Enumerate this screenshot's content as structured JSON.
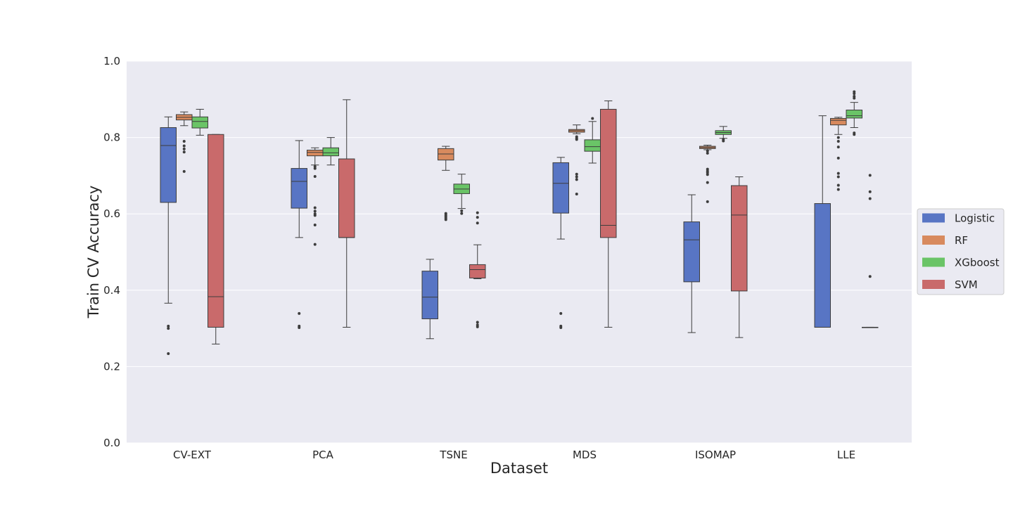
{
  "chart_data": {
    "type": "box",
    "xlabel": "Dataset",
    "ylabel": "Train CV Accuracy",
    "ylim": [
      0.0,
      1.0
    ],
    "yticks": [
      0.0,
      0.2,
      0.4,
      0.6,
      0.8,
      1.0
    ],
    "ytick_labels": [
      "0.0",
      "0.2",
      "0.4",
      "0.6",
      "0.8",
      "1.0"
    ],
    "grid": true,
    "legend_position": "right",
    "categories": [
      "CV-EXT",
      "PCA",
      "TSNE",
      "MDS",
      "ISOMAP",
      "LLE"
    ],
    "series": [
      {
        "name": "Logistic",
        "color": "#5875c4",
        "boxes": [
          {
            "whislo": 0.366,
            "q1": 0.63,
            "med": 0.779,
            "q3": 0.826,
            "whishi": 0.854,
            "fliers": [
              0.3,
              0.306,
              0.234
            ]
          },
          {
            "whislo": 0.538,
            "q1": 0.615,
            "med": 0.685,
            "q3": 0.719,
            "whishi": 0.792,
            "fliers": [
              0.339,
              0.306,
              0.302
            ]
          },
          {
            "whislo": 0.273,
            "q1": 0.325,
            "med": 0.382,
            "q3": 0.45,
            "whishi": 0.481,
            "fliers": []
          },
          {
            "whislo": 0.534,
            "q1": 0.602,
            "med": 0.68,
            "q3": 0.734,
            "whishi": 0.748,
            "fliers": [
              0.339,
              0.306,
              0.302
            ]
          },
          {
            "whislo": 0.289,
            "q1": 0.422,
            "med": 0.532,
            "q3": 0.579,
            "whishi": 0.65,
            "fliers": []
          },
          {
            "whislo": 0.303,
            "q1": 0.303,
            "med": 0.303,
            "q3": 0.627,
            "whishi": 0.857,
            "fliers": []
          }
        ]
      },
      {
        "name": "RF",
        "color": "#d88a5e",
        "boxes": [
          {
            "whislo": 0.831,
            "q1": 0.846,
            "med": 0.853,
            "q3": 0.86,
            "whishi": 0.867,
            "fliers": [
              0.79,
              0.778,
              0.77,
              0.762,
              0.711
            ]
          },
          {
            "whislo": 0.728,
            "q1": 0.752,
            "med": 0.761,
            "q3": 0.767,
            "whishi": 0.773,
            "fliers": [
              0.724,
              0.719,
              0.698,
              0.616,
              0.607,
              0.6,
              0.596,
              0.571,
              0.52
            ]
          },
          {
            "whislo": 0.714,
            "q1": 0.741,
            "med": 0.757,
            "q3": 0.771,
            "whishi": 0.777,
            "fliers": [
              0.601,
              0.597,
              0.593,
              0.589,
              0.585
            ]
          },
          {
            "whislo": 0.81,
            "q1": 0.814,
            "med": 0.818,
            "q3": 0.821,
            "whishi": 0.833,
            "fliers": [
              0.802,
              0.798,
              0.795,
              0.704,
              0.697,
              0.69,
              0.652
            ]
          },
          {
            "whislo": 0.768,
            "q1": 0.771,
            "med": 0.774,
            "q3": 0.777,
            "whishi": 0.78,
            "fliers": [
              0.765,
              0.759,
              0.717,
              0.712,
              0.708,
              0.703,
              0.682,
              0.632
            ]
          },
          {
            "whislo": 0.808,
            "q1": 0.833,
            "med": 0.845,
            "q3": 0.85,
            "whishi": 0.853,
            "fliers": [
              0.8,
              0.79,
              0.775,
              0.746,
              0.706,
              0.697,
              0.675,
              0.664
            ]
          }
        ]
      },
      {
        "name": "XGboost",
        "color": "#6ac467",
        "boxes": [
          {
            "whislo": 0.806,
            "q1": 0.825,
            "med": 0.842,
            "q3": 0.854,
            "whishi": 0.874,
            "fliers": []
          },
          {
            "whislo": 0.728,
            "q1": 0.752,
            "med": 0.76,
            "q3": 0.773,
            "whishi": 0.8,
            "fliers": []
          },
          {
            "whislo": 0.614,
            "q1": 0.653,
            "med": 0.665,
            "q3": 0.678,
            "whishi": 0.704,
            "fliers": [
              0.608,
              0.601
            ]
          },
          {
            "whislo": 0.733,
            "q1": 0.764,
            "med": 0.776,
            "q3": 0.794,
            "whishi": 0.842,
            "fliers": [
              0.85
            ]
          },
          {
            "whislo": 0.798,
            "q1": 0.808,
            "med": 0.813,
            "q3": 0.818,
            "whishi": 0.829,
            "fliers": [
              0.795,
              0.791
            ]
          },
          {
            "whislo": 0.826,
            "q1": 0.851,
            "med": 0.857,
            "q3": 0.872,
            "whishi": 0.892,
            "fliers": [
              0.92,
              0.915,
              0.908,
              0.903,
              0.812,
              0.808
            ]
          }
        ]
      },
      {
        "name": "SVM",
        "color": "#c96a6b",
        "boxes": [
          {
            "whislo": 0.259,
            "q1": 0.303,
            "med": 0.383,
            "q3": 0.808,
            "whishi": 0.808,
            "fliers": []
          },
          {
            "whislo": 0.303,
            "q1": 0.538,
            "med": 0.538,
            "q3": 0.744,
            "whishi": 0.899,
            "fliers": []
          },
          {
            "whislo": 0.43,
            "q1": 0.432,
            "med": 0.454,
            "q3": 0.467,
            "whishi": 0.519,
            "fliers": [
              0.603,
              0.591,
              0.576,
              0.316,
              0.309,
              0.304
            ]
          },
          {
            "whislo": 0.303,
            "q1": 0.538,
            "med": 0.57,
            "q3": 0.874,
            "whishi": 0.896,
            "fliers": []
          },
          {
            "whislo": 0.276,
            "q1": 0.398,
            "med": 0.597,
            "q3": 0.674,
            "whishi": 0.697,
            "fliers": []
          },
          {
            "whislo": 0.303,
            "q1": 0.303,
            "med": 0.303,
            "q3": 0.303,
            "whishi": 0.303,
            "fliers": [
              0.701,
              0.658,
              0.64,
              0.436
            ]
          }
        ]
      }
    ]
  }
}
